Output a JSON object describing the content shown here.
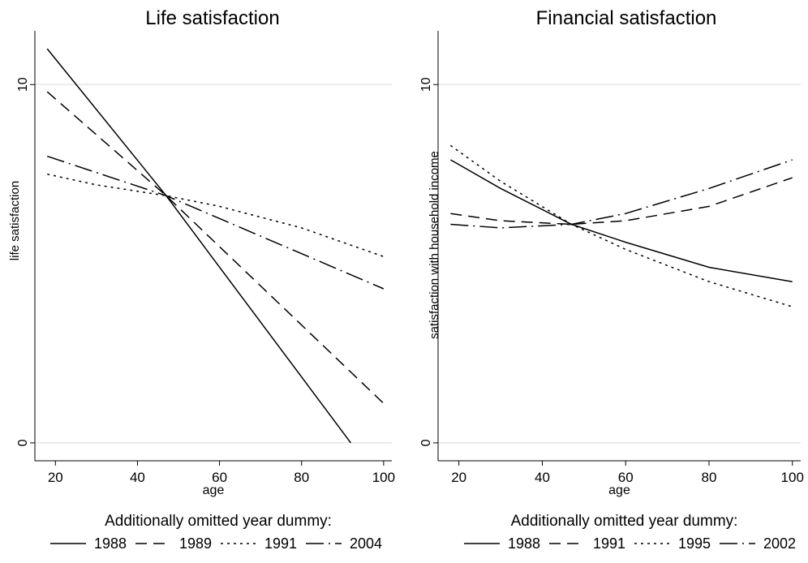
{
  "chart_data": [
    {
      "type": "line",
      "title": "Life satisfaction",
      "xlabel": "age",
      "ylabel": "life satisfaction",
      "xlim": [
        15,
        102
      ],
      "ylim": [
        -0.5,
        11.5
      ],
      "xticks": [
        "20",
        "40",
        "60",
        "80",
        "100"
      ],
      "yticks": [
        "0",
        "10"
      ],
      "grid": "horizontal",
      "legend": {
        "title": "Additionally omitted year dummy:",
        "placement": "bottom",
        "entries": [
          "1988",
          "1989",
          "1991",
          "2004"
        ]
      },
      "series": [
        {
          "name": "1988",
          "dash": "solid",
          "x": [
            18,
            47,
            92
          ],
          "y": [
            11.0,
            6.9,
            0.0
          ]
        },
        {
          "name": "1989",
          "dash": "dashed",
          "x": [
            18,
            47,
            100
          ],
          "y": [
            9.8,
            6.9,
            1.1
          ]
        },
        {
          "name": "1991",
          "dash": "dotted",
          "x": [
            18,
            30,
            47,
            60,
            80,
            100
          ],
          "y": [
            7.5,
            7.2,
            6.9,
            6.6,
            6.0,
            5.2
          ]
        },
        {
          "name": "2004",
          "dash": "dashdot",
          "x": [
            18,
            47,
            100
          ],
          "y": [
            8.0,
            6.9,
            4.3
          ]
        }
      ]
    },
    {
      "type": "line",
      "title": "Financial satisfaction",
      "xlabel": "age",
      "ylabel": "satisfaction with household income",
      "xlim": [
        15,
        102
      ],
      "ylim": [
        -0.5,
        11.5
      ],
      "xticks": [
        "20",
        "40",
        "60",
        "80",
        "100"
      ],
      "yticks": [
        "0",
        "10"
      ],
      "grid": "horizontal",
      "legend": {
        "title": "Additionally omitted year dummy:",
        "placement": "bottom",
        "entries": [
          "1988",
          "1991",
          "1995",
          "2002"
        ]
      },
      "series": [
        {
          "name": "1988",
          "dash": "solid",
          "x": [
            18,
            30,
            47,
            60,
            80,
            100
          ],
          "y": [
            7.9,
            7.1,
            6.1,
            5.6,
            4.9,
            4.5
          ]
        },
        {
          "name": "1991",
          "dash": "dashed",
          "x": [
            18,
            30,
            47,
            60,
            80,
            100
          ],
          "y": [
            6.4,
            6.2,
            6.1,
            6.2,
            6.6,
            7.4
          ]
        },
        {
          "name": "1995",
          "dash": "dotted",
          "x": [
            18,
            30,
            47,
            60,
            80,
            100
          ],
          "y": [
            8.3,
            7.3,
            6.1,
            5.4,
            4.5,
            3.8
          ]
        },
        {
          "name": "2002",
          "dash": "dashdot",
          "x": [
            18,
            30,
            47,
            60,
            80,
            100
          ],
          "y": [
            6.1,
            6.0,
            6.1,
            6.4,
            7.1,
            7.9
          ]
        }
      ]
    }
  ]
}
